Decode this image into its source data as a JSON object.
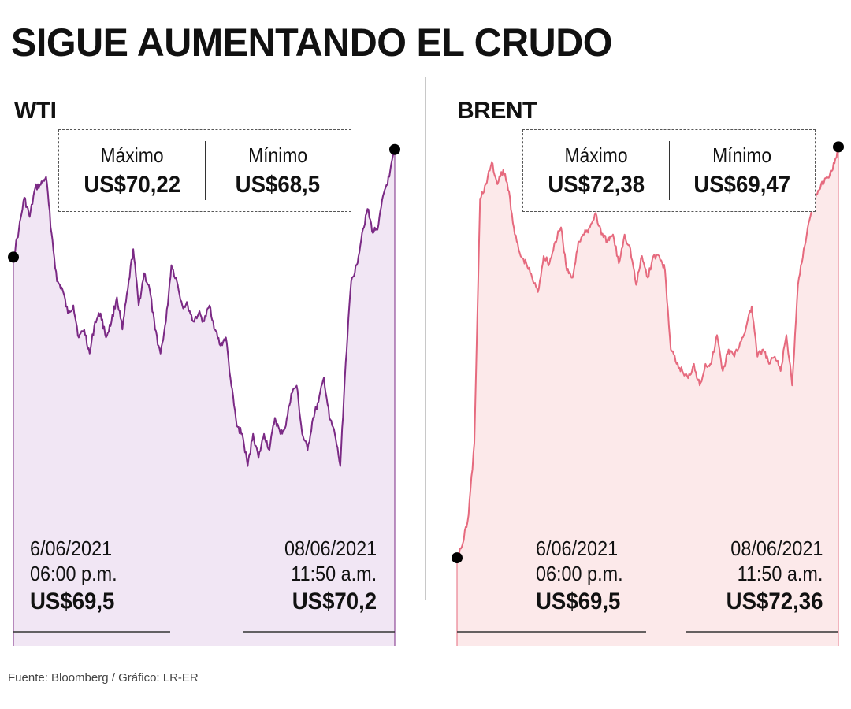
{
  "title": "SIGUE AUMENTANDO EL CRUDO",
  "source": "Fuente: Bloomberg / Gráfico: LR-ER",
  "colors": {
    "wti_line": "#7b2a85",
    "wti_fill": "#f1e6f4",
    "brent_line": "#e66a7e",
    "brent_fill": "#fce9ea",
    "marker": "#000000"
  },
  "chart_data": [
    {
      "type": "area",
      "title": "WTI",
      "xlabel": "",
      "ylabel": "",
      "ylim": [
        67.9,
        70.4
      ],
      "x_start": "6/06/2021 06:00 p.m.",
      "x_end": "08/06/2021 11:50 a.m.",
      "values": [
        69.55,
        69.72,
        69.92,
        69.8,
        69.98,
        70.0,
        70.05,
        69.7,
        69.4,
        69.35,
        69.2,
        69.25,
        69.05,
        69.1,
        68.95,
        69.15,
        69.2,
        69.05,
        69.15,
        69.3,
        69.1,
        69.35,
        69.6,
        69.25,
        69.45,
        69.35,
        69.1,
        68.95,
        69.15,
        69.5,
        69.4,
        69.25,
        69.25,
        69.15,
        69.2,
        69.15,
        69.25,
        69.1,
        69.0,
        69.05,
        68.75,
        68.5,
        68.45,
        68.25,
        68.45,
        68.3,
        68.45,
        68.35,
        68.55,
        68.45,
        68.5,
        68.7,
        68.75,
        68.45,
        68.35,
        68.55,
        68.65,
        68.8,
        68.55,
        68.45,
        68.25,
        68.9,
        69.4,
        69.5,
        69.7,
        69.85,
        69.7,
        69.75,
        69.95,
        70.05,
        70.22
      ]
    },
    {
      "type": "area",
      "title": "BRENT",
      "xlabel": "",
      "ylabel": "",
      "ylim": [
        69.38,
        72.45
      ],
      "x_start": "6/06/2021 06:00 p.m.",
      "x_end": "08/06/2021 11:50 a.m.",
      "values": [
        69.5,
        69.6,
        69.8,
        70.3,
        72.0,
        72.1,
        72.25,
        72.1,
        72.2,
        72.05,
        71.75,
        71.6,
        71.55,
        71.45,
        71.35,
        71.6,
        71.55,
        71.7,
        71.8,
        71.5,
        71.45,
        71.7,
        71.75,
        71.8,
        71.9,
        71.75,
        71.7,
        71.75,
        71.55,
        71.75,
        71.65,
        71.4,
        71.6,
        71.45,
        71.6,
        71.6,
        71.5,
        70.95,
        70.85,
        70.8,
        70.75,
        70.85,
        70.7,
        70.85,
        70.85,
        71.05,
        70.8,
        70.95,
        70.9,
        71.0,
        71.1,
        71.25,
        70.9,
        70.95,
        70.85,
        70.9,
        70.8,
        71.05,
        70.7,
        71.4,
        71.65,
        71.85,
        72.0,
        72.1,
        72.15,
        72.2,
        72.36
      ]
    }
  ],
  "panels": {
    "wti": {
      "name": "WTI",
      "max_label": "Máximo",
      "max_value": "US$70,22",
      "min_label": "Mínimo",
      "min_value": "US$68,5",
      "start_date": "6/06/2021",
      "start_time": "06:00 p.m.",
      "start_value": "US$69,5",
      "end_date": "08/06/2021",
      "end_time": "11:50 a.m.",
      "end_value": "US$70,2"
    },
    "brent": {
      "name": "BRENT",
      "max_label": "Máximo",
      "max_value": "US$72,38",
      "min_label": "Mínimo",
      "min_value": "US$69,47",
      "start_date": "6/06/2021",
      "start_time": "06:00 p.m.",
      "start_value": "US$69,5",
      "end_date": "08/06/2021",
      "end_time": "11:50 a.m.",
      "end_value": "US$72,36"
    }
  }
}
